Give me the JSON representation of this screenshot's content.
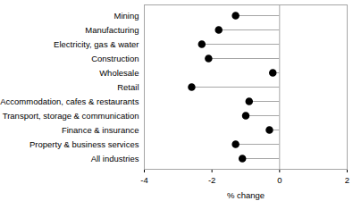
{
  "chart_data": {
    "type": "dot",
    "orientation": "horizontal",
    "categories": [
      "Mining",
      "Manufacturing",
      "Electricity, gas & water",
      "Construction",
      "Wholesale",
      "Retail",
      "Accommodation, cafes & restaurants",
      "Transport, storage & communication",
      "Finance & insurance",
      "Property & business services",
      "All industries"
    ],
    "values": [
      -1.3,
      -1.8,
      -2.3,
      -2.1,
      -0.2,
      -2.6,
      -0.9,
      -1.0,
      -0.3,
      -1.3,
      -1.1
    ],
    "color": "#000000",
    "xlabel": "% change",
    "xlim": [
      -4,
      2
    ],
    "xticks": [
      -4,
      -2,
      0,
      2
    ],
    "grid": false
  }
}
